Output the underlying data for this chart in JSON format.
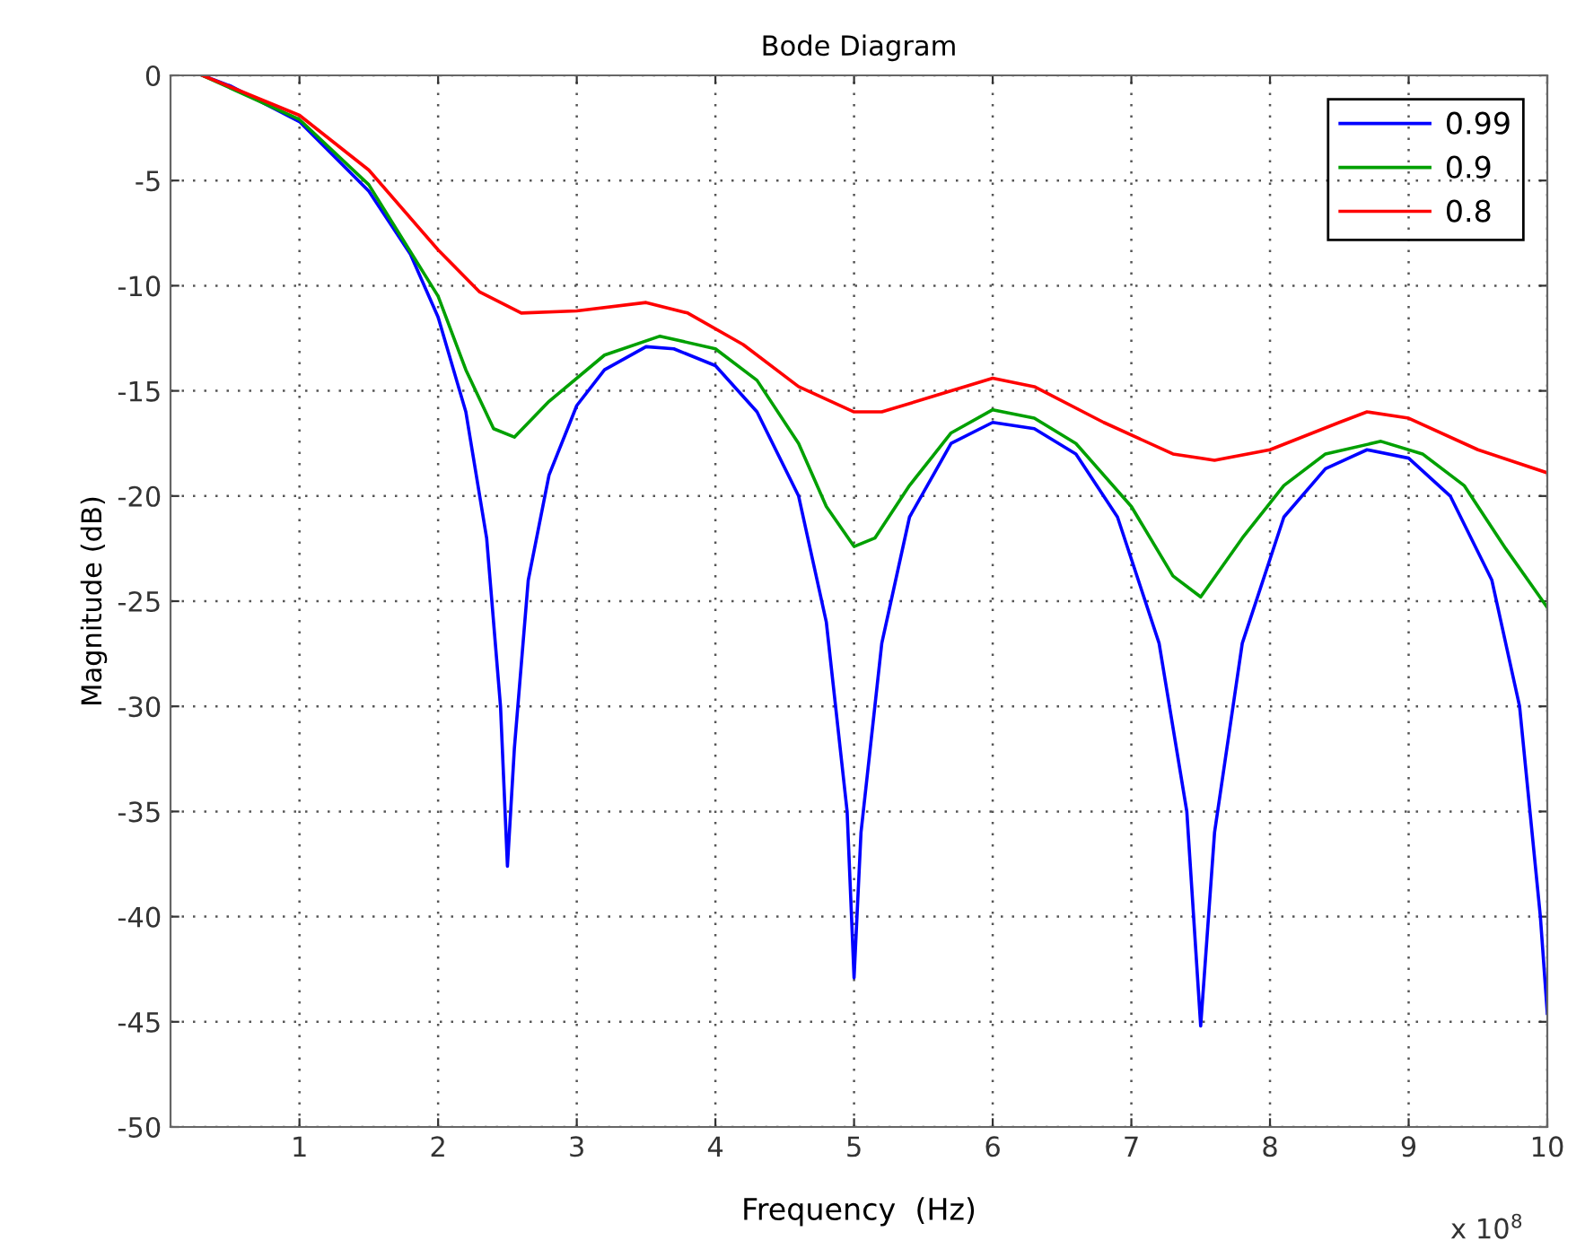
{
  "chart_data": {
    "type": "line",
    "title": "Bode Diagram",
    "xlabel": "Frequency  (Hz)",
    "ylabel": "Magnitude (dB)",
    "annotations": [
      "x 10$^{8}$"
    ],
    "xlim": [
      0.07,
      10
    ],
    "xticks": [
      1,
      2,
      3,
      4,
      5,
      6,
      7,
      8,
      9,
      10
    ],
    "ylim": [
      -50,
      0
    ],
    "yticks": [
      0,
      -5,
      -10,
      -15,
      -20,
      -25,
      -30,
      -35,
      -40,
      -45,
      -50
    ],
    "grid": true,
    "legend": "top right",
    "line_style": "solid",
    "marker": "none",
    "series": [
      {
        "name": "0.99",
        "color": "#0000ff",
        "x": [
          0.3,
          0.5,
          1.0,
          1.5,
          1.8,
          2.0,
          2.2,
          2.35,
          2.45,
          2.5,
          2.55,
          2.65,
          2.8,
          3.0,
          3.2,
          3.5,
          3.7,
          4.0,
          4.3,
          4.6,
          4.8,
          4.95,
          5.0,
          5.05,
          5.2,
          5.4,
          5.7,
          6.0,
          6.3,
          6.6,
          6.9,
          7.2,
          7.4,
          7.5,
          7.6,
          7.8,
          8.1,
          8.4,
          8.7,
          9.0,
          9.3,
          9.6,
          9.8,
          9.95,
          10
        ],
        "values": [
          0,
          -0.5,
          -2.2,
          -5.5,
          -8.5,
          -11.5,
          -16,
          -22,
          -30,
          -37.6,
          -32,
          -24,
          -19,
          -15.7,
          -14,
          -12.9,
          -13,
          -13.8,
          -16,
          -20,
          -26,
          -35,
          -42.9,
          -36,
          -27,
          -21,
          -17.5,
          -16.5,
          -16.8,
          -18,
          -21,
          -27,
          -35,
          -45.2,
          -36,
          -27,
          -21,
          -18.7,
          -17.8,
          -18.2,
          -20,
          -24,
          -30,
          -40,
          -44.6
        ]
      },
      {
        "name": "0.9",
        "color": "#00a000",
        "x": [
          0.3,
          1.0,
          1.5,
          2.0,
          2.2,
          2.4,
          2.55,
          2.8,
          3.2,
          3.6,
          4.0,
          4.3,
          4.6,
          4.8,
          5.0,
          5.15,
          5.4,
          5.7,
          6.0,
          6.3,
          6.6,
          7.0,
          7.3,
          7.5,
          7.8,
          8.1,
          8.4,
          8.8,
          9.1,
          9.4,
          9.7,
          10
        ],
        "values": [
          0,
          -2.1,
          -5.2,
          -10.5,
          -14,
          -16.8,
          -17.2,
          -15.5,
          -13.3,
          -12.4,
          -13,
          -14.5,
          -17.5,
          -20.5,
          -22.4,
          -22,
          -19.5,
          -17,
          -15.9,
          -16.3,
          -17.5,
          -20.5,
          -23.8,
          -24.8,
          -22,
          -19.5,
          -18,
          -17.4,
          -18,
          -19.5,
          -22.5,
          -25.3
        ]
      },
      {
        "name": "0.8",
        "color": "#ff0000",
        "x": [
          0.3,
          1.0,
          1.5,
          2.0,
          2.3,
          2.6,
          3.0,
          3.5,
          3.8,
          4.2,
          4.6,
          5.0,
          5.2,
          5.6,
          6.0,
          6.3,
          6.8,
          7.3,
          7.6,
          8.0,
          8.5,
          8.7,
          9.0,
          9.5,
          10
        ],
        "values": [
          0,
          -1.9,
          -4.5,
          -8.3,
          -10.3,
          -11.3,
          -11.2,
          -10.8,
          -11.3,
          -12.8,
          -14.8,
          -16,
          -16,
          -15.2,
          -14.4,
          -14.8,
          -16.5,
          -18,
          -18.3,
          -17.8,
          -16.5,
          -16,
          -16.3,
          -17.8,
          -18.9
        ]
      }
    ]
  }
}
